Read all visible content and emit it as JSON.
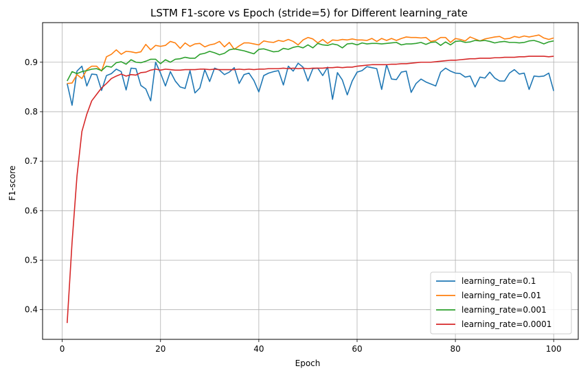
{
  "chart_data": {
    "type": "line",
    "title": "LSTM F1-score vs Epoch (stride=5) for Different learning_rate",
    "xlabel": "Epoch",
    "ylabel": "F1-score",
    "xlim": [
      -4,
      105
    ],
    "ylim": [
      0.34,
      0.98
    ],
    "xticks": [
      0,
      20,
      40,
      60,
      80,
      100
    ],
    "yticks": [
      0.4,
      0.5,
      0.6,
      0.7,
      0.8,
      0.9
    ],
    "grid": true,
    "legend_position": "lower-right",
    "x": [
      1,
      2,
      3,
      4,
      5,
      6,
      7,
      8,
      9,
      10,
      11,
      12,
      13,
      14,
      15,
      16,
      17,
      18,
      19,
      20,
      21,
      22,
      23,
      24,
      25,
      26,
      27,
      28,
      29,
      30,
      31,
      32,
      33,
      34,
      35,
      36,
      37,
      38,
      39,
      40,
      41,
      42,
      43,
      44,
      45,
      46,
      47,
      48,
      49,
      50,
      51,
      52,
      53,
      54,
      55,
      56,
      57,
      58,
      59,
      60,
      61,
      62,
      63,
      64,
      65,
      66,
      67,
      68,
      69,
      70,
      71,
      72,
      73,
      74,
      75,
      76,
      77,
      78,
      79,
      80,
      81,
      82,
      83,
      84,
      85,
      86,
      87,
      88,
      89,
      90,
      91,
      92,
      93,
      94,
      95,
      96,
      97,
      98,
      99,
      100
    ],
    "series": [
      {
        "name": "learning_rate=0.1",
        "color": "#1f77b4",
        "values": [
          0.857,
          0.813,
          0.882,
          0.892,
          0.852,
          0.876,
          0.875,
          0.843,
          0.873,
          0.877,
          0.886,
          0.881,
          0.844,
          0.888,
          0.887,
          0.853,
          0.846,
          0.822,
          0.9,
          0.878,
          0.852,
          0.881,
          0.862,
          0.85,
          0.847,
          0.883,
          0.838,
          0.848,
          0.885,
          0.861,
          0.888,
          0.884,
          0.875,
          0.88,
          0.889,
          0.857,
          0.875,
          0.878,
          0.863,
          0.84,
          0.873,
          0.878,
          0.881,
          0.883,
          0.854,
          0.892,
          0.882,
          0.898,
          0.89,
          0.862,
          0.887,
          0.888,
          0.873,
          0.89,
          0.825,
          0.879,
          0.864,
          0.834,
          0.862,
          0.88,
          0.883,
          0.891,
          0.889,
          0.887,
          0.845,
          0.895,
          0.866,
          0.865,
          0.88,
          0.882,
          0.839,
          0.857,
          0.866,
          0.86,
          0.856,
          0.852,
          0.88,
          0.888,
          0.882,
          0.878,
          0.877,
          0.87,
          0.872,
          0.85,
          0.87,
          0.868,
          0.88,
          0.868,
          0.862,
          0.862,
          0.878,
          0.885,
          0.876,
          0.878,
          0.845,
          0.872,
          0.871,
          0.872,
          0.878,
          0.842
        ]
      },
      {
        "name": "learning_rate=0.01",
        "color": "#ff7f0e",
        "values": [
          0.857,
          0.858,
          0.875,
          0.867,
          0.885,
          0.892,
          0.892,
          0.882,
          0.911,
          0.916,
          0.925,
          0.916,
          0.922,
          0.921,
          0.919,
          0.921,
          0.936,
          0.925,
          0.934,
          0.932,
          0.934,
          0.942,
          0.939,
          0.928,
          0.939,
          0.932,
          0.937,
          0.938,
          0.931,
          0.935,
          0.937,
          0.942,
          0.931,
          0.94,
          0.926,
          0.933,
          0.939,
          0.939,
          0.937,
          0.935,
          0.943,
          0.941,
          0.94,
          0.944,
          0.942,
          0.946,
          0.942,
          0.935,
          0.945,
          0.95,
          0.947,
          0.939,
          0.946,
          0.938,
          0.945,
          0.944,
          0.946,
          0.945,
          0.947,
          0.945,
          0.945,
          0.944,
          0.948,
          0.942,
          0.948,
          0.944,
          0.948,
          0.944,
          0.948,
          0.951,
          0.95,
          0.95,
          0.949,
          0.95,
          0.942,
          0.944,
          0.95,
          0.95,
          0.94,
          0.948,
          0.946,
          0.943,
          0.951,
          0.947,
          0.943,
          0.947,
          0.949,
          0.951,
          0.952,
          0.947,
          0.948,
          0.952,
          0.95,
          0.953,
          0.951,
          0.953,
          0.955,
          0.949,
          0.946,
          0.949
        ]
      },
      {
        "name": "learning_rate=0.001",
        "color": "#2ca02c",
        "values": [
          0.862,
          0.881,
          0.877,
          0.881,
          0.883,
          0.886,
          0.887,
          0.883,
          0.892,
          0.89,
          0.899,
          0.901,
          0.896,
          0.905,
          0.9,
          0.899,
          0.902,
          0.906,
          0.906,
          0.897,
          0.905,
          0.9,
          0.906,
          0.907,
          0.91,
          0.908,
          0.908,
          0.916,
          0.918,
          0.922,
          0.919,
          0.915,
          0.918,
          0.925,
          0.927,
          0.925,
          0.923,
          0.92,
          0.917,
          0.926,
          0.927,
          0.924,
          0.921,
          0.922,
          0.928,
          0.926,
          0.93,
          0.932,
          0.929,
          0.935,
          0.929,
          0.938,
          0.935,
          0.934,
          0.937,
          0.935,
          0.929,
          0.937,
          0.938,
          0.935,
          0.939,
          0.937,
          0.938,
          0.938,
          0.937,
          0.938,
          0.939,
          0.94,
          0.935,
          0.937,
          0.937,
          0.938,
          0.94,
          0.936,
          0.94,
          0.941,
          0.934,
          0.941,
          0.935,
          0.942,
          0.943,
          0.94,
          0.941,
          0.944,
          0.943,
          0.944,
          0.942,
          0.939,
          0.941,
          0.942,
          0.94,
          0.94,
          0.939,
          0.94,
          0.943,
          0.944,
          0.941,
          0.937,
          0.941,
          0.943
        ]
      },
      {
        "name": "learning_rate=0.0001",
        "color": "#d62728",
        "values": [
          0.373,
          0.536,
          0.67,
          0.76,
          0.795,
          0.822,
          0.835,
          0.848,
          0.857,
          0.867,
          0.872,
          0.876,
          0.872,
          0.875,
          0.874,
          0.879,
          0.88,
          0.884,
          0.886,
          0.884,
          0.886,
          0.885,
          0.884,
          0.884,
          0.885,
          0.885,
          0.885,
          0.886,
          0.886,
          0.885,
          0.886,
          0.885,
          0.885,
          0.885,
          0.885,
          0.886,
          0.885,
          0.886,
          0.885,
          0.886,
          0.886,
          0.887,
          0.887,
          0.887,
          0.888,
          0.887,
          0.888,
          0.887,
          0.888,
          0.887,
          0.888,
          0.888,
          0.888,
          0.889,
          0.889,
          0.89,
          0.889,
          0.89,
          0.89,
          0.892,
          0.893,
          0.894,
          0.895,
          0.895,
          0.895,
          0.895,
          0.896,
          0.896,
          0.897,
          0.897,
          0.898,
          0.899,
          0.9,
          0.9,
          0.9,
          0.901,
          0.902,
          0.903,
          0.904,
          0.904,
          0.905,
          0.906,
          0.907,
          0.907,
          0.908,
          0.908,
          0.908,
          0.909,
          0.909,
          0.91,
          0.91,
          0.91,
          0.911,
          0.911,
          0.912,
          0.912,
          0.912,
          0.912,
          0.911,
          0.912
        ]
      }
    ]
  }
}
